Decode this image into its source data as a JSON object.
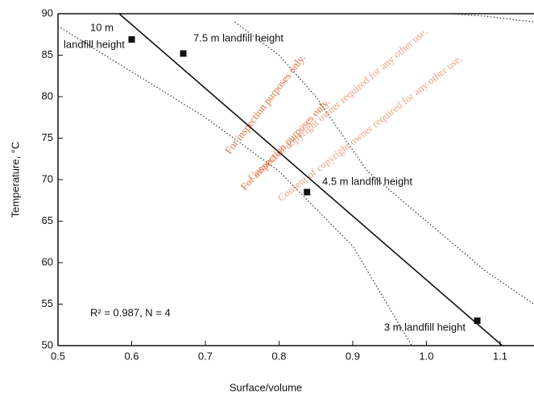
{
  "chart_data": {
    "type": "scatter",
    "xlabel": "Surface/volume",
    "ylabel": "Temperature, °C",
    "xlim": [
      0.5,
      1.146
    ],
    "ylim": [
      50,
      90
    ],
    "xticks": [
      0.5,
      0.6,
      0.7,
      0.8,
      0.9,
      {
        "value": 1,
        "label": "1.0"
      },
      1.1
    ],
    "yticks": [
      50,
      55,
      60,
      65,
      70,
      75,
      80,
      85,
      90
    ],
    "points": {
      "x": [
        0.6,
        0.67,
        0.838,
        1.069
      ],
      "y": [
        86.9,
        85.2,
        68.5,
        53.0
      ],
      "color": "#111"
    },
    "fit": {
      "x": [
        0.583,
        1.103
      ],
      "y": [
        90,
        50
      ],
      "color": "#111"
    },
    "curves": [
      {
        "x": [
          0.5,
          0.6,
          0.7,
          0.8,
          0.9,
          0.98
        ],
        "y": [
          88.5,
          83,
          77.5,
          71,
          62,
          50
        ]
      },
      {
        "x": [
          0.74,
          0.8,
          0.85,
          0.92,
          1.0,
          1.08,
          1.146
        ],
        "y": [
          89,
          85,
          80,
          71,
          65,
          59,
          55
        ]
      },
      {
        "x": [
          1.03,
          1.08,
          1.146
        ],
        "y": [
          90,
          89.7,
          89
        ]
      }
    ],
    "annotations": [
      "10 m",
      "landfill height",
      "7.5 m landfill height",
      "4.5 m landfill height",
      "3 m landfill height",
      "R² = 0.987, N = 4"
    ],
    "watermark": [
      "For inspection purposes only.",
      "Consent of copyright owner required for any other use.",
      "For inspection purposes only.",
      "Consent of copyright owner required for any other use."
    ]
  }
}
